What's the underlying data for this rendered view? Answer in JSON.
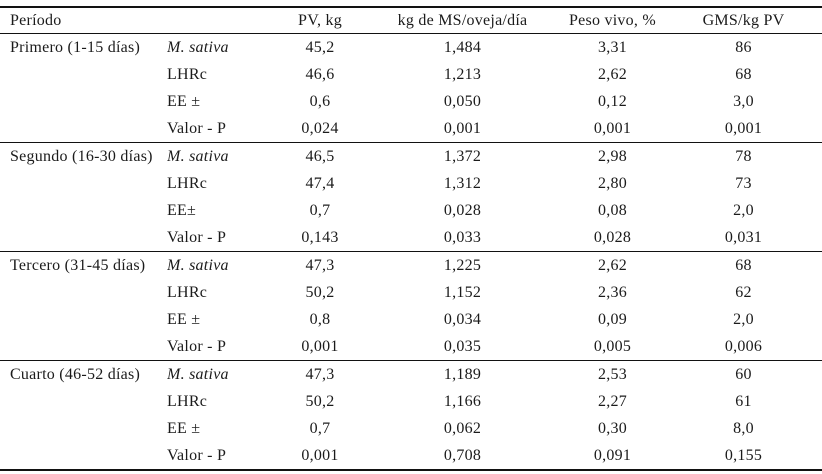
{
  "table": {
    "header": {
      "periodo": "Período",
      "treatment": "",
      "pv": "PV, kg",
      "ms": "kg de MS/oveja/día",
      "peso": "Peso vivo, %",
      "gms": "GMS/kg PV"
    },
    "groups": [
      {
        "period": "Primero (1-15 días)",
        "rows": [
          {
            "label": "M. sativa",
            "values": [
              "45,2",
              "1,484",
              "3,31",
              "86"
            ]
          },
          {
            "label": "LHRc",
            "values": [
              "46,6",
              "1,213",
              "2,62",
              "68"
            ]
          },
          {
            "label": "EE ±",
            "values": [
              "0,6",
              "0,050",
              "0,12",
              "3,0"
            ]
          },
          {
            "label": "Valor - P",
            "values": [
              "0,024",
              "0,001",
              "0,001",
              "0,001"
            ]
          }
        ]
      },
      {
        "period": "Segundo (16-30 días)",
        "rows": [
          {
            "label": "M. sativa",
            "values": [
              "46,5",
              "1,372",
              "2,98",
              "78"
            ]
          },
          {
            "label": "LHRc",
            "values": [
              "47,4",
              "1,312",
              "2,80",
              "73"
            ]
          },
          {
            "label": "EE±",
            "values": [
              "0,7",
              "0,028",
              "0,08",
              "2,0"
            ]
          },
          {
            "label": "Valor - P",
            "values": [
              "0,143",
              "0,033",
              "0,028",
              "0,031"
            ]
          }
        ]
      },
      {
        "period": "Tercero (31-45 días)",
        "rows": [
          {
            "label": "M. sativa",
            "values": [
              "47,3",
              "1,225",
              "2,62",
              "68"
            ]
          },
          {
            "label": "LHRc",
            "values": [
              "50,2",
              "1,152",
              "2,36",
              "62"
            ]
          },
          {
            "label": "EE ±",
            "values": [
              "0,8",
              "0,034",
              "0,09",
              "2,0"
            ]
          },
          {
            "label": "Valor - P",
            "values": [
              "0,001",
              "0,035",
              "0,005",
              "0,006"
            ]
          }
        ]
      },
      {
        "period": "Cuarto (46-52 días)",
        "rows": [
          {
            "label": "M. sativa",
            "values": [
              "47,3",
              "1,189",
              "2,53",
              "60"
            ]
          },
          {
            "label": "LHRc",
            "values": [
              "50,2",
              "1,166",
              "2,27",
              "61"
            ]
          },
          {
            "label": "EE ±",
            "values": [
              "0,7",
              "0,062",
              "0,30",
              "8,0"
            ]
          },
          {
            "label": "Valor - P",
            "values": [
              "0,001",
              "0,708",
              "0,091",
              "0,155"
            ]
          }
        ]
      }
    ]
  }
}
